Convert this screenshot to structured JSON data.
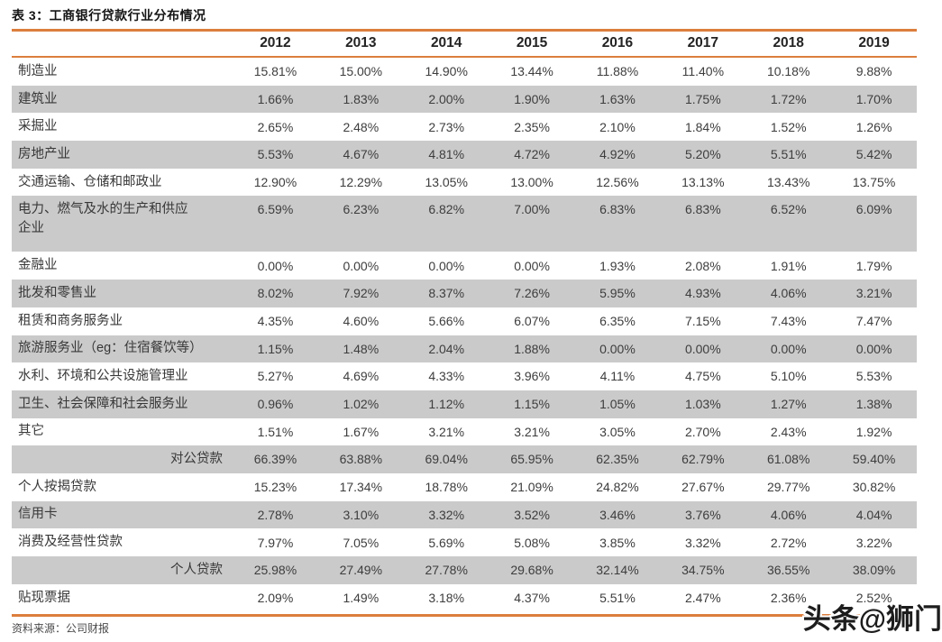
{
  "title": "表 3：工商银行贷款行业分布情况",
  "source": "资料来源：公司财报",
  "watermark": "头条@狮门",
  "colors": {
    "accent": "#DC7E3D",
    "stripe": "#CACACA",
    "text": "#3A3A3A"
  },
  "table": {
    "year_headers": [
      "2012",
      "2013",
      "2014",
      "2015",
      "2016",
      "2017",
      "2018",
      "2019"
    ],
    "rows": [
      {
        "label": "制造业",
        "values": [
          "15.81%",
          "15.00%",
          "14.90%",
          "13.44%",
          "11.88%",
          "11.40%",
          "10.18%",
          "9.88%"
        ]
      },
      {
        "label": "建筑业",
        "values": [
          "1.66%",
          "1.83%",
          "2.00%",
          "1.90%",
          "1.63%",
          "1.75%",
          "1.72%",
          "1.70%"
        ]
      },
      {
        "label": "采掘业",
        "values": [
          "2.65%",
          "2.48%",
          "2.73%",
          "2.35%",
          "2.10%",
          "1.84%",
          "1.52%",
          "1.26%"
        ]
      },
      {
        "label": "房地产业",
        "values": [
          "5.53%",
          "4.67%",
          "4.81%",
          "4.72%",
          "4.92%",
          "5.20%",
          "5.51%",
          "5.42%"
        ]
      },
      {
        "label": "交通运输、仓储和邮政业",
        "values": [
          "12.90%",
          "12.29%",
          "13.05%",
          "13.00%",
          "12.56%",
          "13.13%",
          "13.43%",
          "13.75%"
        ]
      },
      {
        "label": "电力、燃气及水的生产和供应企业",
        "tall": true,
        "values": [
          "6.59%",
          "6.23%",
          "6.82%",
          "7.00%",
          "6.83%",
          "6.83%",
          "6.52%",
          "6.09%"
        ]
      },
      {
        "label": "金融业",
        "values": [
          "0.00%",
          "0.00%",
          "0.00%",
          "0.00%",
          "1.93%",
          "2.08%",
          "1.91%",
          "1.79%"
        ]
      },
      {
        "label": "批发和零售业",
        "values": [
          "8.02%",
          "7.92%",
          "8.37%",
          "7.26%",
          "5.95%",
          "4.93%",
          "4.06%",
          "3.21%"
        ]
      },
      {
        "label": "租赁和商务服务业",
        "values": [
          "4.35%",
          "4.60%",
          "5.66%",
          "6.07%",
          "6.35%",
          "7.15%",
          "7.43%",
          "7.47%"
        ]
      },
      {
        "label": "旅游服务业（eg：住宿餐饮等）",
        "values": [
          "1.15%",
          "1.48%",
          "2.04%",
          "1.88%",
          "0.00%",
          "0.00%",
          "0.00%",
          "0.00%"
        ]
      },
      {
        "label": "水利、环境和公共设施管理业",
        "values": [
          "5.27%",
          "4.69%",
          "4.33%",
          "3.96%",
          "4.11%",
          "4.75%",
          "5.10%",
          "5.53%"
        ]
      },
      {
        "label": "卫生、社会保障和社会服务业",
        "values": [
          "0.96%",
          "1.02%",
          "1.12%",
          "1.15%",
          "1.05%",
          "1.03%",
          "1.27%",
          "1.38%"
        ]
      },
      {
        "label": "其它",
        "values": [
          "1.51%",
          "1.67%",
          "3.21%",
          "3.21%",
          "3.05%",
          "2.70%",
          "2.43%",
          "1.92%"
        ]
      },
      {
        "label": "对公贷款",
        "summary": true,
        "values": [
          "66.39%",
          "63.88%",
          "69.04%",
          "65.95%",
          "62.35%",
          "62.79%",
          "61.08%",
          "59.40%"
        ]
      },
      {
        "label": "个人按揭贷款",
        "values": [
          "15.23%",
          "17.34%",
          "18.78%",
          "21.09%",
          "24.82%",
          "27.67%",
          "29.77%",
          "30.82%"
        ]
      },
      {
        "label": "信用卡",
        "values": [
          "2.78%",
          "3.10%",
          "3.32%",
          "3.52%",
          "3.46%",
          "3.76%",
          "4.06%",
          "4.04%"
        ]
      },
      {
        "label": "消费及经营性贷款",
        "values": [
          "7.97%",
          "7.05%",
          "5.69%",
          "5.08%",
          "3.85%",
          "3.32%",
          "2.72%",
          "3.22%"
        ]
      },
      {
        "label": "个人贷款",
        "summary": true,
        "values": [
          "25.98%",
          "27.49%",
          "27.78%",
          "29.68%",
          "32.14%",
          "34.75%",
          "36.55%",
          "38.09%"
        ]
      },
      {
        "label": "贴现票据",
        "values": [
          "2.09%",
          "1.49%",
          "3.18%",
          "4.37%",
          "5.51%",
          "2.47%",
          "2.36%",
          "2.52%"
        ]
      }
    ]
  }
}
